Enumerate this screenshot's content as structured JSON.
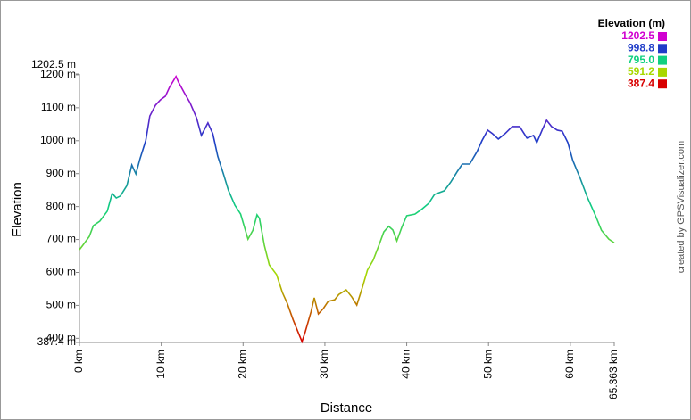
{
  "chart_data": {
    "type": "line",
    "x_label": "Distance",
    "y_label": "Elevation",
    "credit": "created by GPSVisualizer.com",
    "xlim": [
      0,
      65.363
    ],
    "ylim": [
      387.4,
      1202.5
    ],
    "xticks": [
      {
        "value": 0,
        "label": "0 km"
      },
      {
        "value": 10,
        "label": "10 km"
      },
      {
        "value": 20,
        "label": "20 km"
      },
      {
        "value": 30,
        "label": "30 km"
      },
      {
        "value": 40,
        "label": "40 km"
      },
      {
        "value": 50,
        "label": "50 km"
      },
      {
        "value": 60,
        "label": "60 km"
      },
      {
        "value": 65.363,
        "label": "65.363 km"
      }
    ],
    "yticks": [
      {
        "value": 387.4,
        "label": "387.4 m"
      },
      {
        "value": 400,
        "label": "400 m"
      },
      {
        "value": 500,
        "label": "500 m"
      },
      {
        "value": 600,
        "label": "600 m"
      },
      {
        "value": 700,
        "label": "700 m"
      },
      {
        "value": 800,
        "label": "800 m"
      },
      {
        "value": 900,
        "label": "900 m"
      },
      {
        "value": 1000,
        "label": "1000 m"
      },
      {
        "value": 1100,
        "label": "1100 m"
      },
      {
        "value": 1200,
        "label": "1200 m"
      },
      {
        "value": 1202.5,
        "label": "1202.5 m"
      }
    ],
    "legend": {
      "title": "Elevation (m)",
      "position": "top-right",
      "stops": [
        {
          "value": 1202.5,
          "label": "1202.5",
          "color": "#d000d0"
        },
        {
          "value": 998.8,
          "label": "998.8",
          "color": "#1f3cc8"
        },
        {
          "value": 795.0,
          "label": "795.0",
          "color": "#10d080"
        },
        {
          "value": 591.2,
          "label": "591.2",
          "color": "#a8d800"
        },
        {
          "value": 387.4,
          "label": "387.4",
          "color": "#d80000"
        }
      ]
    },
    "x": [
      0,
      0.4,
      1.2,
      1.7,
      2.5,
      3.4,
      4.0,
      4.5,
      5.0,
      5.8,
      6.4,
      6.9,
      7.4,
      8.1,
      8.6,
      9.3,
      9.9,
      10.5,
      11.0,
      11.8,
      12.1,
      12.8,
      13.5,
      14.3,
      14.9,
      15.7,
      16.3,
      16.9,
      17.6,
      18.2,
      19.0,
      19.7,
      20.6,
      21.2,
      21.7,
      22.0,
      22.6,
      23.2,
      24.1,
      24.8,
      25.4,
      26.1,
      26.7,
      27.2,
      27.6,
      28.3,
      28.7,
      29.2,
      29.8,
      30.4,
      31.2,
      31.7,
      32.6,
      33.3,
      33.9,
      34.6,
      35.2,
      35.9,
      36.6,
      37.2,
      37.8,
      38.3,
      38.8,
      39.4,
      40.0,
      41.0,
      41.8,
      42.7,
      43.4,
      44.6,
      45.4,
      46.2,
      46.8,
      47.7,
      48.6,
      49.2,
      49.9,
      50.5,
      51.2,
      52.0,
      52.9,
      53.8,
      54.7,
      55.5,
      55.9,
      56.6,
      57.1,
      57.7,
      58.4,
      59.0,
      59.7,
      60.3,
      61.2,
      62.1,
      63.0,
      63.8,
      64.7,
      65.363
    ],
    "series": [
      {
        "name": "Elevation",
        "values": [
          669,
          682,
          709,
          742,
          756,
          786,
          840,
          826,
          832,
          864,
          926,
          899,
          945,
          1000,
          1075,
          1108,
          1124,
          1135,
          1162,
          1195,
          1178,
          1146,
          1116,
          1070,
          1016,
          1054,
          1021,
          953,
          899,
          850,
          804,
          777,
          701,
          728,
          775,
          764,
          682,
          623,
          593,
          539,
          506,
          457,
          420,
          390,
          420,
          480,
          523,
          474,
          490,
          512,
          517,
          533,
          547,
          525,
          501,
          556,
          607,
          637,
          682,
          723,
          740,
          729,
          696,
          737,
          772,
          777,
          791,
          810,
          837,
          848,
          875,
          907,
          929,
          929,
          967,
          1000,
          1032,
          1021,
          1005,
          1021,
          1043,
          1043,
          1008,
          1016,
          994,
          1035,
          1062,
          1043,
          1032,
          1029,
          994,
          940,
          886,
          827,
          777,
          728,
          701,
          690
        ]
      }
    ]
  }
}
